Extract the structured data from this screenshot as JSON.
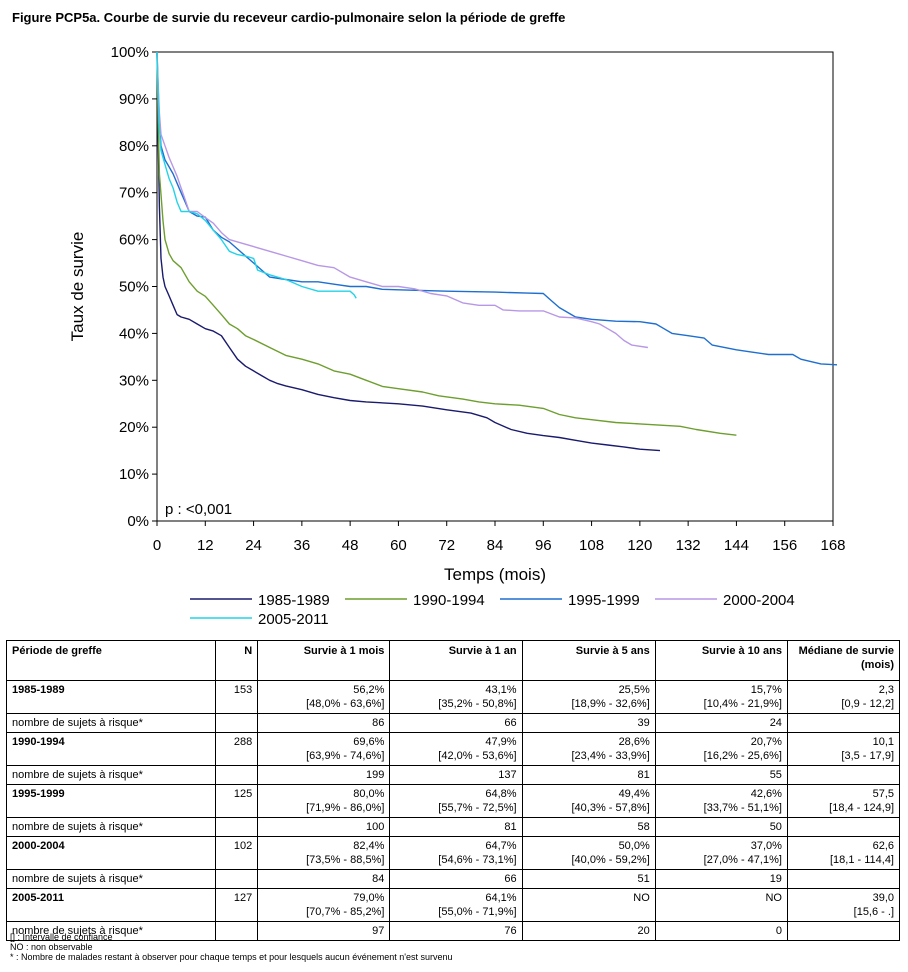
{
  "title": "Figure PCP5a. Courbe de survie du receveur cardio-pulmonaire selon la période de greffe",
  "chart_data": {
    "type": "line",
    "ylabel": "Taux de survie",
    "xlabel": "Temps (mois)",
    "xlim": [
      0,
      168
    ],
    "ylim": [
      0,
      100
    ],
    "x_ticks": [
      0,
      12,
      24,
      36,
      48,
      60,
      72,
      84,
      96,
      108,
      120,
      132,
      144,
      156,
      168
    ],
    "y_ticks": [
      0,
      10,
      20,
      30,
      40,
      50,
      60,
      70,
      80,
      90,
      100
    ],
    "y_tick_labels": [
      "0%",
      "10%",
      "20%",
      "30%",
      "40%",
      "50%",
      "60%",
      "70%",
      "80%",
      "90%",
      "100%"
    ],
    "annotation": "p : <0,001",
    "grid": false,
    "legend_position": "bottom",
    "series": [
      {
        "name": "1985-1989",
        "color": "#1a1a6e",
        "points": [
          [
            0,
            100
          ],
          [
            0.3,
            82
          ],
          [
            0.6,
            67
          ],
          [
            1,
            56
          ],
          [
            1.5,
            52
          ],
          [
            2,
            50
          ],
          [
            3,
            48
          ],
          [
            4,
            46
          ],
          [
            5,
            44
          ],
          [
            6,
            43.5
          ],
          [
            8,
            43
          ],
          [
            10,
            42
          ],
          [
            12,
            41
          ],
          [
            14,
            40.5
          ],
          [
            16,
            39.5
          ],
          [
            18,
            37
          ],
          [
            20,
            34.5
          ],
          [
            22,
            33
          ],
          [
            24,
            32
          ],
          [
            26,
            31
          ],
          [
            28,
            30
          ],
          [
            30,
            29.3
          ],
          [
            32,
            28.8
          ],
          [
            36,
            28
          ],
          [
            40,
            27
          ],
          [
            44,
            26.3
          ],
          [
            48,
            25.7
          ],
          [
            52,
            25.4
          ],
          [
            60,
            25
          ],
          [
            66,
            24.5
          ],
          [
            72,
            23.7
          ],
          [
            78,
            23
          ],
          [
            82,
            22
          ],
          [
            84,
            21
          ],
          [
            88,
            19.5
          ],
          [
            92,
            18.7
          ],
          [
            96,
            18.2
          ],
          [
            100,
            17.8
          ],
          [
            104,
            17.2
          ],
          [
            108,
            16.6
          ],
          [
            112,
            16.2
          ],
          [
            116,
            15.8
          ],
          [
            120,
            15.3
          ],
          [
            125,
            15
          ]
        ]
      },
      {
        "name": "1990-1994",
        "color": "#6d9e2e",
        "points": [
          [
            0,
            100
          ],
          [
            0.3,
            85
          ],
          [
            0.6,
            74
          ],
          [
            1,
            69.6
          ],
          [
            1.5,
            64
          ],
          [
            2,
            60
          ],
          [
            3,
            57
          ],
          [
            4,
            55.5
          ],
          [
            6,
            54
          ],
          [
            8,
            51
          ],
          [
            10,
            49
          ],
          [
            12,
            47.9
          ],
          [
            14,
            46
          ],
          [
            16,
            44
          ],
          [
            18,
            42
          ],
          [
            20,
            41
          ],
          [
            22,
            39.5
          ],
          [
            24,
            38.7
          ],
          [
            28,
            37
          ],
          [
            32,
            35.3
          ],
          [
            36,
            34.5
          ],
          [
            40,
            33.5
          ],
          [
            44,
            32
          ],
          [
            48,
            31.3
          ],
          [
            52,
            30
          ],
          [
            56,
            28.7
          ],
          [
            60,
            28.2
          ],
          [
            66,
            27.5
          ],
          [
            70,
            26.7
          ],
          [
            76,
            26
          ],
          [
            80,
            25.4
          ],
          [
            84,
            25
          ],
          [
            90,
            24.7
          ],
          [
            96,
            24
          ],
          [
            100,
            22.7
          ],
          [
            104,
            22
          ],
          [
            108,
            21.6
          ],
          [
            114,
            21
          ],
          [
            120,
            20.7
          ],
          [
            130,
            20.2
          ],
          [
            134,
            19.5
          ],
          [
            140,
            18.7
          ],
          [
            144,
            18.3
          ]
        ]
      },
      {
        "name": "1995-1999",
        "color": "#1e6fd0",
        "points": [
          [
            0,
            100
          ],
          [
            0.3,
            92
          ],
          [
            0.6,
            85
          ],
          [
            1,
            80
          ],
          [
            2,
            77
          ],
          [
            3,
            75.5
          ],
          [
            4,
            74
          ],
          [
            5,
            72
          ],
          [
            6,
            70
          ],
          [
            7,
            68
          ],
          [
            8,
            66
          ],
          [
            10,
            65
          ],
          [
            12,
            64.8
          ],
          [
            14,
            62
          ],
          [
            16,
            60.5
          ],
          [
            18,
            59.5
          ],
          [
            20,
            58
          ],
          [
            22,
            56.5
          ],
          [
            24,
            55
          ],
          [
            28,
            52
          ],
          [
            32,
            51.5
          ],
          [
            36,
            51
          ],
          [
            40,
            51
          ],
          [
            44,
            50.5
          ],
          [
            48,
            50
          ],
          [
            52,
            50
          ],
          [
            56,
            49.4
          ],
          [
            60,
            49.3
          ],
          [
            72,
            49
          ],
          [
            84,
            48.8
          ],
          [
            92,
            48.6
          ],
          [
            96,
            48.5
          ],
          [
            98,
            47
          ],
          [
            100,
            45.5
          ],
          [
            104,
            43.5
          ],
          [
            108,
            43
          ],
          [
            114,
            42.6
          ],
          [
            120,
            42.5
          ],
          [
            124,
            42
          ],
          [
            126,
            41
          ],
          [
            128,
            40
          ],
          [
            132,
            39.5
          ],
          [
            136,
            39
          ],
          [
            138,
            37.5
          ],
          [
            144,
            36.5
          ],
          [
            148,
            36
          ],
          [
            152,
            35.5
          ],
          [
            158,
            35.5
          ],
          [
            160,
            34.5
          ],
          [
            165,
            33.5
          ],
          [
            169,
            33.3
          ]
        ]
      },
      {
        "name": "2000-2004",
        "color": "#b897e6",
        "points": [
          [
            0,
            100
          ],
          [
            0.3,
            93
          ],
          [
            0.6,
            87
          ],
          [
            1,
            82.4
          ],
          [
            2,
            80
          ],
          [
            3,
            77.5
          ],
          [
            4,
            75.5
          ],
          [
            5,
            73.5
          ],
          [
            6,
            71
          ],
          [
            7,
            68.5
          ],
          [
            8,
            66
          ],
          [
            10,
            66
          ],
          [
            12,
            64.7
          ],
          [
            14,
            63.5
          ],
          [
            16,
            61.5
          ],
          [
            18,
            60
          ],
          [
            20,
            59.5
          ],
          [
            24,
            58.5
          ],
          [
            28,
            57.5
          ],
          [
            32,
            56.5
          ],
          [
            36,
            55.5
          ],
          [
            40,
            54.5
          ],
          [
            44,
            54
          ],
          [
            48,
            52
          ],
          [
            52,
            51
          ],
          [
            56,
            50
          ],
          [
            60,
            50
          ],
          [
            64,
            49.5
          ],
          [
            68,
            48.5
          ],
          [
            72,
            48
          ],
          [
            76,
            46.5
          ],
          [
            80,
            46
          ],
          [
            84,
            46
          ],
          [
            86,
            45
          ],
          [
            90,
            44.8
          ],
          [
            96,
            44.8
          ],
          [
            100,
            43.5
          ],
          [
            104,
            43.3
          ],
          [
            108,
            42.5
          ],
          [
            110,
            42
          ],
          [
            112,
            41
          ],
          [
            114,
            40
          ],
          [
            116,
            38.5
          ],
          [
            118,
            37.5
          ],
          [
            122,
            37
          ]
        ]
      },
      {
        "name": "2005-2011",
        "color": "#22d3e8",
        "points": [
          [
            0,
            100
          ],
          [
            0.5,
            85
          ],
          [
            1,
            79
          ],
          [
            2,
            76
          ],
          [
            3,
            73
          ],
          [
            4,
            71
          ],
          [
            5,
            68
          ],
          [
            6,
            66
          ],
          [
            8,
            66
          ],
          [
            10,
            65.5
          ],
          [
            12,
            64.1
          ],
          [
            14,
            62
          ],
          [
            16,
            60
          ],
          [
            18,
            57.5
          ],
          [
            20,
            56.8
          ],
          [
            22,
            56.5
          ],
          [
            24,
            56
          ],
          [
            25,
            53.5
          ],
          [
            28,
            52.5
          ],
          [
            32,
            51.5
          ],
          [
            36,
            50
          ],
          [
            40,
            49
          ],
          [
            44,
            49
          ],
          [
            48,
            49
          ],
          [
            49,
            48.2
          ],
          [
            49.5,
            47.5
          ]
        ]
      }
    ]
  },
  "table": {
    "headers": [
      "Période de greffe",
      "N",
      "Survie à 1 mois",
      "Survie à 1 an",
      "Survie à 5 ans",
      "Survie à 10 ans",
      "Médiane de survie (mois)"
    ],
    "risk_label": "nombre de sujets à risque*",
    "rows": [
      {
        "period": "1985-1989",
        "n": "153",
        "vals": [
          "56,2%",
          "43,1%",
          "25,5%",
          "15,7%",
          "2,3"
        ],
        "cis": [
          "[48,0% - 63,6%]",
          "[35,2% - 50,8%]",
          "[18,9% - 32,6%]",
          "[10,4% - 21,9%]",
          "[0,9 - 12,2]"
        ],
        "risk": [
          "86",
          "66",
          "39",
          "24"
        ]
      },
      {
        "period": "1990-1994",
        "n": "288",
        "vals": [
          "69,6%",
          "47,9%",
          "28,6%",
          "20,7%",
          "10,1"
        ],
        "cis": [
          "[63,9% - 74,6%]",
          "[42,0% - 53,6%]",
          "[23,4% - 33,9%]",
          "[16,2% - 25,6%]",
          "[3,5 - 17,9]"
        ],
        "risk": [
          "199",
          "137",
          "81",
          "55"
        ]
      },
      {
        "period": "1995-1999",
        "n": "125",
        "vals": [
          "80,0%",
          "64,8%",
          "49,4%",
          "42,6%",
          "57,5"
        ],
        "cis": [
          "[71,9% - 86,0%]",
          "[55,7% - 72,5%]",
          "[40,3% - 57,8%]",
          "[33,7% - 51,1%]",
          "[18,4 - 124,9]"
        ],
        "risk": [
          "100",
          "81",
          "58",
          "50"
        ]
      },
      {
        "period": "2000-2004",
        "n": "102",
        "vals": [
          "82,4%",
          "64,7%",
          "50,0%",
          "37,0%",
          "62,6"
        ],
        "cis": [
          "[73,5% - 88,5%]",
          "[54,6% - 73,1%]",
          "[40,0% - 59,2%]",
          "[27,0% - 47,1%]",
          "[18,1 - 114,4]"
        ],
        "risk": [
          "84",
          "66",
          "51",
          "19"
        ]
      },
      {
        "period": "2005-2011",
        "n": "127",
        "vals": [
          "79,0%",
          "64,1%",
          "NO",
          "NO",
          "39,0"
        ],
        "cis": [
          "[70,7% - 85,2%]",
          "[55,0% - 71,9%]",
          "",
          "",
          "[15,6 - .]"
        ],
        "risk": [
          "97",
          "76",
          "20",
          "0"
        ]
      }
    ]
  },
  "notes": [
    "[] : Intervalle de confiance",
    "NO : non observable",
    "* : Nombre de malades restant à observer pour chaque temps et pour lesquels aucun événement n'est survenu"
  ]
}
